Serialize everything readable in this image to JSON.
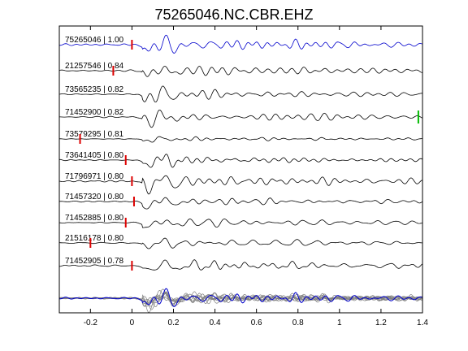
{
  "chart_data": {
    "type": "line",
    "title": "75265046.NC.CBR.EHZ",
    "xlabel": "",
    "ylabel": "",
    "xlim": [
      -0.35,
      1.4
    ],
    "x_ticks": [
      -0.2,
      0,
      0.2,
      0.4,
      0.6,
      0.8,
      1,
      1.2,
      1.4
    ],
    "x_tick_labels": [
      "-0.2",
      "0",
      "0.2",
      "0.4",
      "0.6",
      "0.8",
      "1",
      "1.2",
      "1.4"
    ],
    "grid": false,
    "colors": {
      "reference": "#0000cc",
      "trace": "#000000",
      "overlay": "#808080",
      "pick": "#dd0000",
      "s_pick": "#00bb00"
    },
    "traces": [
      {
        "label": "75265046 | 1.00",
        "event_id": "75265046",
        "correlation": 1.0,
        "reference": true,
        "pick_time": 0.0,
        "amp": 1.2,
        "seed": 1
      },
      {
        "label": "21257546 | 0.84",
        "event_id": "21257546",
        "correlation": 0.84,
        "reference": false,
        "pick_time": -0.09,
        "amp": 0.8,
        "seed": 2
      },
      {
        "label": "73565235 | 0.82",
        "event_id": "73565235",
        "correlation": 0.82,
        "reference": false,
        "pick_time": null,
        "amp": 1.0,
        "seed": 3
      },
      {
        "label": "71452900 | 0.82",
        "event_id": "71452900",
        "correlation": 0.82,
        "reference": false,
        "pick_time": null,
        "amp": 1.0,
        "seed": 4,
        "s_pick_time": 1.38
      },
      {
        "label": "73579295 | 0.81",
        "event_id": "73579295",
        "correlation": 0.81,
        "reference": false,
        "pick_time": -0.25,
        "amp": 0.4,
        "seed": 5
      },
      {
        "label": "73641405 | 0.80",
        "event_id": "73641405",
        "correlation": 0.8,
        "reference": false,
        "pick_time": -0.03,
        "amp": 0.9,
        "seed": 6
      },
      {
        "label": "71796971 | 0.80",
        "event_id": "71796971",
        "correlation": 0.8,
        "reference": false,
        "pick_time": 0.0,
        "amp": 1.3,
        "seed": 7
      },
      {
        "label": "71457320 | 0.80",
        "event_id": "71457320",
        "correlation": 0.8,
        "reference": false,
        "pick_time": 0.01,
        "amp": 1.0,
        "seed": 8
      },
      {
        "label": "71452885 | 0.80",
        "event_id": "71452885",
        "correlation": 0.8,
        "reference": false,
        "pick_time": -0.03,
        "amp": 0.8,
        "seed": 9
      },
      {
        "label": "21516178 | 0.80",
        "event_id": "21516178",
        "correlation": 0.8,
        "reference": false,
        "pick_time": -0.2,
        "amp": 0.7,
        "seed": 10
      },
      {
        "label": "71452905 | 0.78",
        "event_id": "71452905",
        "correlation": 0.78,
        "reference": false,
        "pick_time": 0.0,
        "amp": 1.0,
        "seed": 11
      }
    ],
    "stack": {
      "reference_color": "reference",
      "overlay_color": "overlay"
    }
  }
}
